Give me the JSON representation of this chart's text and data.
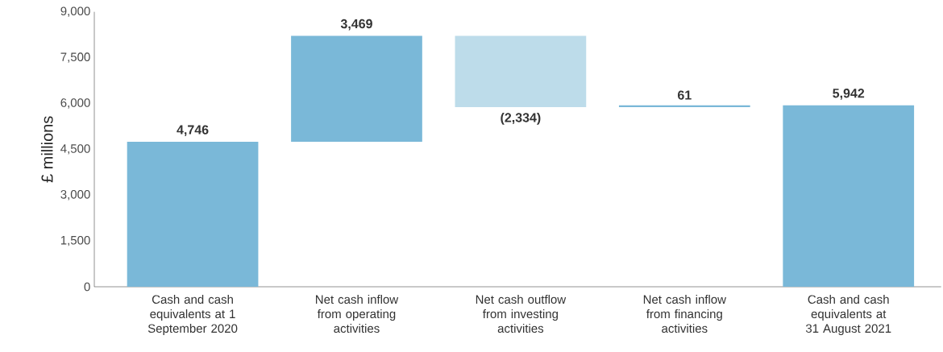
{
  "chart_data": {
    "type": "bar",
    "ylabel": "£ millions",
    "categories": [
      "Cash and cash equivalents at 1 September 2020",
      "Net cash inflow from operating activities",
      "Net cash outflow from investing activities",
      "Net cash inflow from financing activities",
      "Cash and cash equivalents at 31 August 2021"
    ],
    "values": [
      4746,
      3469,
      -2334,
      61,
      5942
    ],
    "base": [
      0,
      4746,
      8215,
      5881,
      0
    ],
    "value_labels": [
      "4,746",
      "3,469",
      "(2,334)",
      "61",
      "5,942"
    ],
    "colors": [
      "#7ab8d8",
      "#7ab8d8",
      "#bddcea",
      "#7ab8d8",
      "#7ab8d8"
    ],
    "ylim": [
      0,
      9000
    ],
    "yticks": [
      {
        "value": 0,
        "label": "0"
      },
      {
        "value": 1500,
        "label": "1,500"
      },
      {
        "value": 3000,
        "label": "3,000"
      },
      {
        "value": 4500,
        "label": "4,500"
      },
      {
        "value": 6000,
        "label": "6,000"
      },
      {
        "value": 7500,
        "label": "7,500"
      },
      {
        "value": 9000,
        "label": "9,000"
      }
    ]
  }
}
